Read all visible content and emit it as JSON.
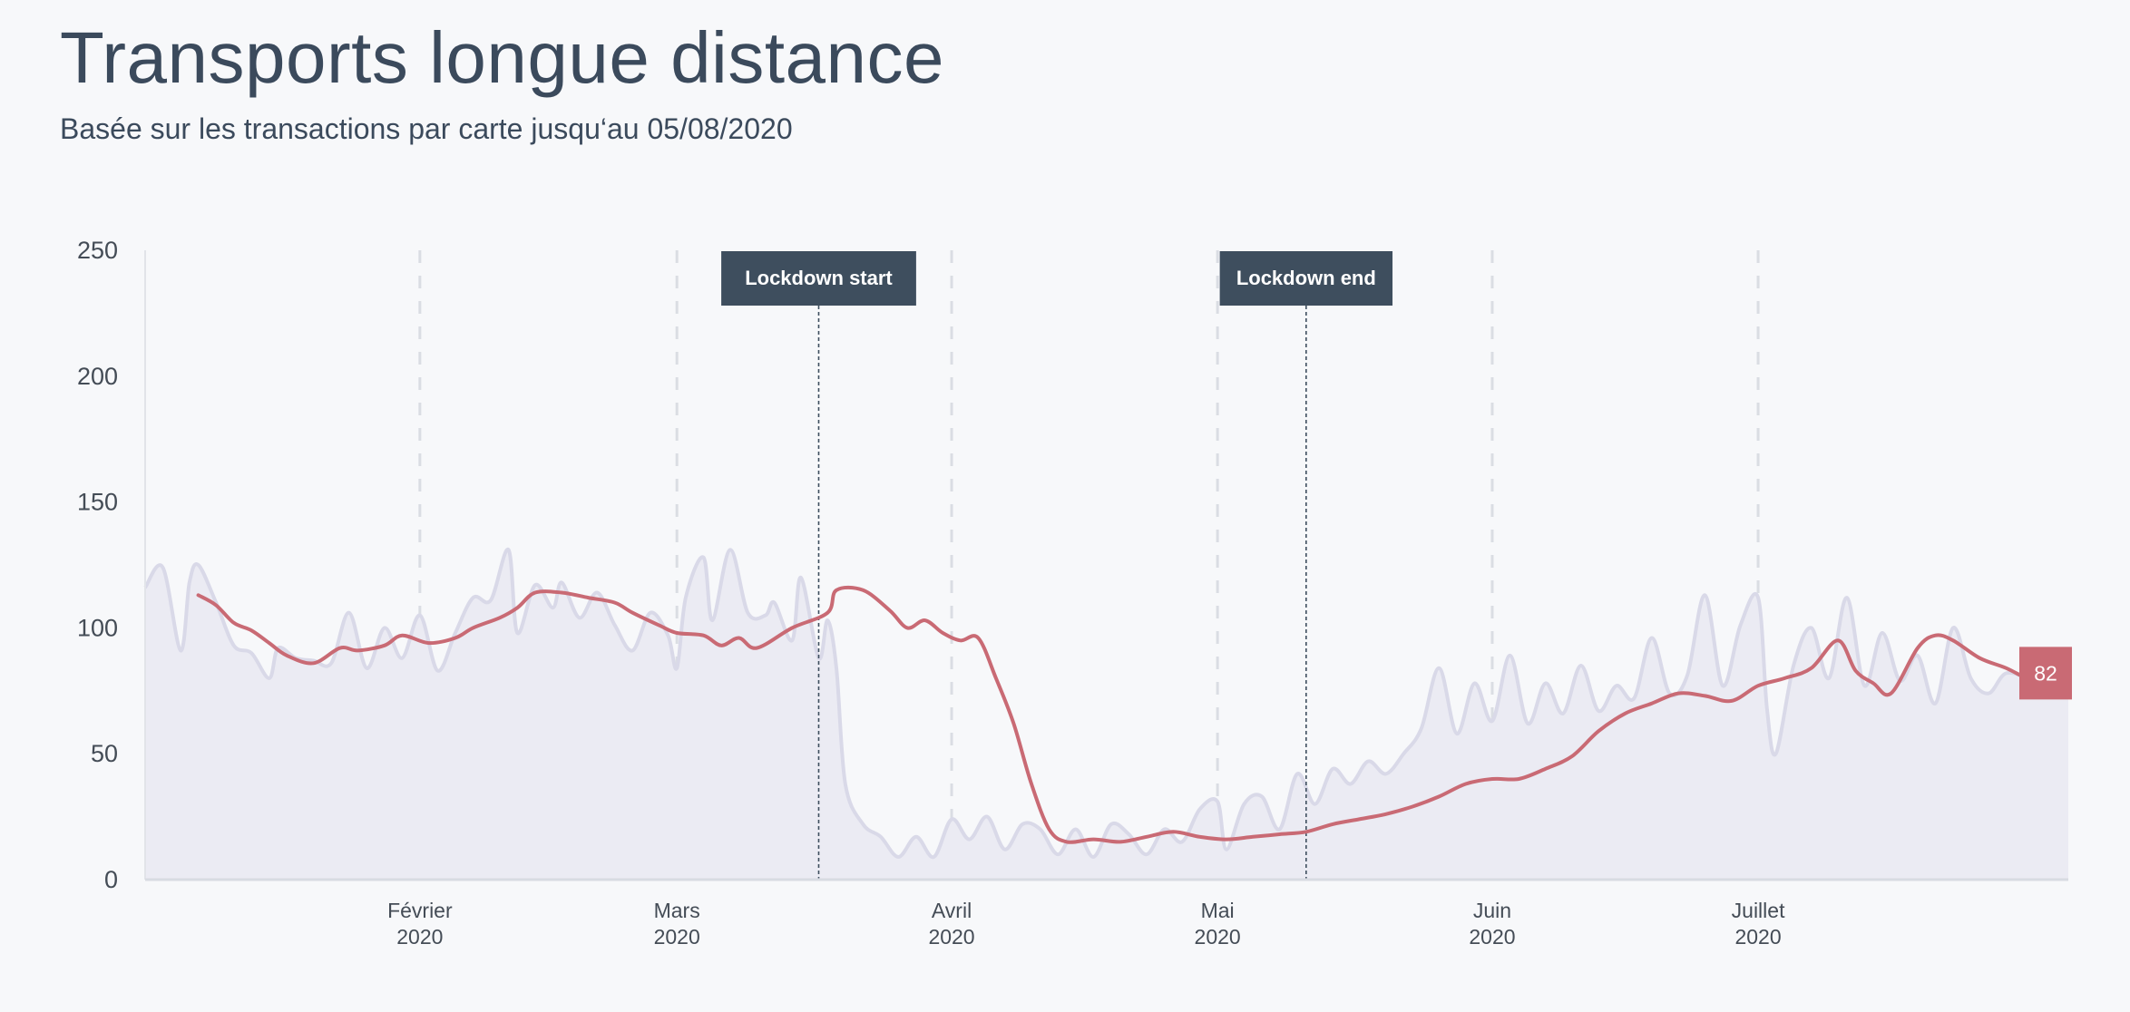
{
  "title": "Transports longue distance",
  "subtitle": "Basée sur les transactions par carte jusqu‘au 05/08/2020",
  "colors": {
    "smoothed_line": "#c96a74",
    "raw_line": "#d9d9e8",
    "raw_area": "#ebebf3",
    "annotation_bg": "#3e4e5e",
    "gridline": "#dadde3",
    "badge_bg": "#c96a74"
  },
  "chart_data": {
    "type": "line",
    "ylim": [
      0,
      250
    ],
    "yticks": [
      0,
      50,
      100,
      150,
      200,
      250
    ],
    "xlim": [
      "2020-01-01",
      "2020-08-05"
    ],
    "x_ticks": [
      {
        "date": "2020-02-01",
        "label_top": "Février",
        "label_bottom": "2020"
      },
      {
        "date": "2020-03-01",
        "label_top": "Mars",
        "label_bottom": "2020"
      },
      {
        "date": "2020-04-01",
        "label_top": "Avril",
        "label_bottom": "2020"
      },
      {
        "date": "2020-05-01",
        "label_top": "Mai",
        "label_bottom": "2020"
      },
      {
        "date": "2020-06-01",
        "label_top": "Juin",
        "label_bottom": "2020"
      },
      {
        "date": "2020-07-01",
        "label_top": "Juillet",
        "label_bottom": "2020"
      }
    ],
    "annotations": [
      {
        "date": "2020-03-17",
        "label": "Lockdown start"
      },
      {
        "date": "2020-05-11",
        "label": "Lockdown end"
      }
    ],
    "last_value_label": "82",
    "series": [
      {
        "style": "raw-area",
        "points": [
          [
            "2020-01-01",
            116
          ],
          [
            "2020-01-03",
            124
          ],
          [
            "2020-01-05",
            91
          ],
          [
            "2020-01-06",
            118
          ],
          [
            "2020-01-07",
            125
          ],
          [
            "2020-01-09",
            110
          ],
          [
            "2020-01-11",
            93
          ],
          [
            "2020-01-13",
            90
          ],
          [
            "2020-01-15",
            80
          ],
          [
            "2020-01-16",
            92
          ],
          [
            "2020-01-18",
            88
          ],
          [
            "2020-01-20",
            87
          ],
          [
            "2020-01-22",
            86
          ],
          [
            "2020-01-24",
            106
          ],
          [
            "2020-01-26",
            84
          ],
          [
            "2020-01-28",
            100
          ],
          [
            "2020-01-30",
            88
          ],
          [
            "2020-02-01",
            105
          ],
          [
            "2020-02-03",
            83
          ],
          [
            "2020-02-05",
            98
          ],
          [
            "2020-02-07",
            112
          ],
          [
            "2020-02-09",
            111
          ],
          [
            "2020-02-11",
            131
          ],
          [
            "2020-02-12",
            98
          ],
          [
            "2020-02-14",
            117
          ],
          [
            "2020-02-16",
            108
          ],
          [
            "2020-02-17",
            118
          ],
          [
            "2020-02-19",
            104
          ],
          [
            "2020-02-21",
            114
          ],
          [
            "2020-02-23",
            101
          ],
          [
            "2020-02-25",
            91
          ],
          [
            "2020-02-27",
            106
          ],
          [
            "2020-02-29",
            97
          ],
          [
            "2020-03-01",
            84
          ],
          [
            "2020-03-02",
            112
          ],
          [
            "2020-03-04",
            128
          ],
          [
            "2020-03-05",
            103
          ],
          [
            "2020-03-07",
            131
          ],
          [
            "2020-03-09",
            106
          ],
          [
            "2020-03-11",
            105
          ],
          [
            "2020-03-12",
            110
          ],
          [
            "2020-03-14",
            95
          ],
          [
            "2020-03-15",
            120
          ],
          [
            "2020-03-17",
            88
          ],
          [
            "2020-03-18",
            103
          ],
          [
            "2020-03-19",
            84
          ],
          [
            "2020-03-20",
            38
          ],
          [
            "2020-03-22",
            22
          ],
          [
            "2020-03-24",
            17
          ],
          [
            "2020-03-26",
            9
          ],
          [
            "2020-03-28",
            17
          ],
          [
            "2020-03-30",
            9
          ],
          [
            "2020-04-01",
            24
          ],
          [
            "2020-04-03",
            16
          ],
          [
            "2020-04-05",
            25
          ],
          [
            "2020-04-07",
            12
          ],
          [
            "2020-04-09",
            22
          ],
          [
            "2020-04-11",
            20
          ],
          [
            "2020-04-13",
            10
          ],
          [
            "2020-04-15",
            20
          ],
          [
            "2020-04-17",
            9
          ],
          [
            "2020-04-19",
            22
          ],
          [
            "2020-04-21",
            18
          ],
          [
            "2020-04-23",
            10
          ],
          [
            "2020-04-25",
            20
          ],
          [
            "2020-04-27",
            15
          ],
          [
            "2020-04-29",
            28
          ],
          [
            "2020-05-01",
            31
          ],
          [
            "2020-05-02",
            12
          ],
          [
            "2020-05-04",
            30
          ],
          [
            "2020-05-06",
            33
          ],
          [
            "2020-05-08",
            20
          ],
          [
            "2020-05-10",
            42
          ],
          [
            "2020-05-12",
            30
          ],
          [
            "2020-05-14",
            44
          ],
          [
            "2020-05-16",
            38
          ],
          [
            "2020-05-18",
            47
          ],
          [
            "2020-05-20",
            42
          ],
          [
            "2020-05-22",
            50
          ],
          [
            "2020-05-24",
            60
          ],
          [
            "2020-05-26",
            84
          ],
          [
            "2020-05-28",
            58
          ],
          [
            "2020-05-30",
            78
          ],
          [
            "2020-06-01",
            63
          ],
          [
            "2020-06-03",
            89
          ],
          [
            "2020-06-05",
            62
          ],
          [
            "2020-06-07",
            78
          ],
          [
            "2020-06-09",
            66
          ],
          [
            "2020-06-11",
            85
          ],
          [
            "2020-06-13",
            67
          ],
          [
            "2020-06-15",
            77
          ],
          [
            "2020-06-17",
            72
          ],
          [
            "2020-06-19",
            96
          ],
          [
            "2020-06-21",
            74
          ],
          [
            "2020-06-23",
            81
          ],
          [
            "2020-06-25",
            113
          ],
          [
            "2020-06-27",
            77
          ],
          [
            "2020-06-29",
            101
          ],
          [
            "2020-07-01",
            112
          ],
          [
            "2020-07-02",
            68
          ],
          [
            "2020-07-03",
            50
          ],
          [
            "2020-07-05",
            85
          ],
          [
            "2020-07-07",
            100
          ],
          [
            "2020-07-09",
            80
          ],
          [
            "2020-07-11",
            112
          ],
          [
            "2020-07-13",
            77
          ],
          [
            "2020-07-15",
            98
          ],
          [
            "2020-07-17",
            79
          ],
          [
            "2020-07-19",
            89
          ],
          [
            "2020-07-21",
            70
          ],
          [
            "2020-07-23",
            100
          ],
          [
            "2020-07-25",
            80
          ],
          [
            "2020-07-27",
            74
          ],
          [
            "2020-07-29",
            82
          ],
          [
            "2020-08-01",
            80
          ],
          [
            "2020-08-05",
            82
          ]
        ]
      },
      {
        "style": "smoothed-line",
        "points": [
          [
            "2020-01-07",
            113
          ],
          [
            "2020-01-09",
            109
          ],
          [
            "2020-01-11",
            102
          ],
          [
            "2020-01-13",
            99
          ],
          [
            "2020-01-15",
            94
          ],
          [
            "2020-01-17",
            89
          ],
          [
            "2020-01-20",
            86
          ],
          [
            "2020-01-23",
            92
          ],
          [
            "2020-01-25",
            91
          ],
          [
            "2020-01-28",
            93
          ],
          [
            "2020-01-30",
            97
          ],
          [
            "2020-02-02",
            94
          ],
          [
            "2020-02-05",
            96
          ],
          [
            "2020-02-07",
            100
          ],
          [
            "2020-02-10",
            104
          ],
          [
            "2020-02-12",
            108
          ],
          [
            "2020-02-14",
            114
          ],
          [
            "2020-02-17",
            114
          ],
          [
            "2020-02-20",
            112
          ],
          [
            "2020-02-23",
            110
          ],
          [
            "2020-02-25",
            106
          ],
          [
            "2020-02-28",
            101
          ],
          [
            "2020-03-01",
            98
          ],
          [
            "2020-03-04",
            97
          ],
          [
            "2020-03-06",
            93
          ],
          [
            "2020-03-08",
            96
          ],
          [
            "2020-03-10",
            92
          ],
          [
            "2020-03-14",
            100
          ],
          [
            "2020-03-18",
            106
          ],
          [
            "2020-03-19",
            115
          ],
          [
            "2020-03-22",
            115
          ],
          [
            "2020-03-25",
            107
          ],
          [
            "2020-03-27",
            100
          ],
          [
            "2020-03-29",
            103
          ],
          [
            "2020-03-31",
            98
          ],
          [
            "2020-04-02",
            95
          ],
          [
            "2020-04-04",
            96
          ],
          [
            "2020-04-06",
            80
          ],
          [
            "2020-04-08",
            62
          ],
          [
            "2020-04-10",
            38
          ],
          [
            "2020-04-12",
            20
          ],
          [
            "2020-04-14",
            15
          ],
          [
            "2020-04-17",
            16
          ],
          [
            "2020-04-20",
            15
          ],
          [
            "2020-04-23",
            17
          ],
          [
            "2020-04-26",
            19
          ],
          [
            "2020-04-29",
            17
          ],
          [
            "2020-05-02",
            16
          ],
          [
            "2020-05-05",
            17
          ],
          [
            "2020-05-08",
            18
          ],
          [
            "2020-05-11",
            19
          ],
          [
            "2020-05-14",
            22
          ],
          [
            "2020-05-17",
            24
          ],
          [
            "2020-05-20",
            26
          ],
          [
            "2020-05-23",
            29
          ],
          [
            "2020-05-26",
            33
          ],
          [
            "2020-05-29",
            38
          ],
          [
            "2020-06-01",
            40
          ],
          [
            "2020-06-04",
            40
          ],
          [
            "2020-06-07",
            44
          ],
          [
            "2020-06-10",
            49
          ],
          [
            "2020-06-13",
            59
          ],
          [
            "2020-06-16",
            66
          ],
          [
            "2020-06-19",
            70
          ],
          [
            "2020-06-22",
            74
          ],
          [
            "2020-06-25",
            73
          ],
          [
            "2020-06-28",
            71
          ],
          [
            "2020-07-01",
            77
          ],
          [
            "2020-07-04",
            80
          ],
          [
            "2020-07-07",
            84
          ],
          [
            "2020-07-10",
            95
          ],
          [
            "2020-07-12",
            83
          ],
          [
            "2020-07-14",
            78
          ],
          [
            "2020-07-16",
            74
          ],
          [
            "2020-07-19",
            92
          ],
          [
            "2020-07-21",
            97
          ],
          [
            "2020-07-23",
            95
          ],
          [
            "2020-07-26",
            88
          ],
          [
            "2020-07-29",
            84
          ],
          [
            "2020-08-01",
            79
          ],
          [
            "2020-08-03",
            80
          ]
        ]
      }
    ]
  }
}
